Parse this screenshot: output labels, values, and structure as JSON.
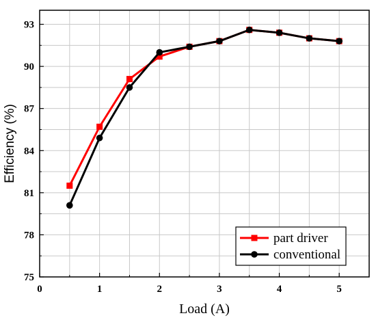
{
  "chart_data": {
    "type": "line",
    "xlabel": "Load (A)",
    "ylabel": "Efficiency (%)",
    "xlim": [
      0,
      5.5
    ],
    "ylim": [
      75,
      94
    ],
    "xticks": [
      0,
      1,
      2,
      3,
      4,
      5
    ],
    "yticks": [
      75,
      78,
      81,
      84,
      87,
      90,
      93
    ],
    "grid": true,
    "legend_position": "bottom-right",
    "series": [
      {
        "name": "part driver",
        "color": "#ff0000",
        "marker": "square",
        "x": [
          0.5,
          1.0,
          1.5,
          2.0,
          2.5,
          3.0,
          3.5,
          4.0,
          4.5,
          5.0
        ],
        "y": [
          81.5,
          85.7,
          89.1,
          90.7,
          91.4,
          91.8,
          92.6,
          92.4,
          92.0,
          91.8
        ]
      },
      {
        "name": "conventional",
        "color": "#000000",
        "marker": "circle",
        "x": [
          0.5,
          1.0,
          1.5,
          2.0,
          2.5,
          3.0,
          3.5,
          4.0,
          4.5,
          5.0
        ],
        "y": [
          80.1,
          84.9,
          88.5,
          91.0,
          91.4,
          91.8,
          92.6,
          92.4,
          92.0,
          91.8
        ]
      }
    ]
  }
}
